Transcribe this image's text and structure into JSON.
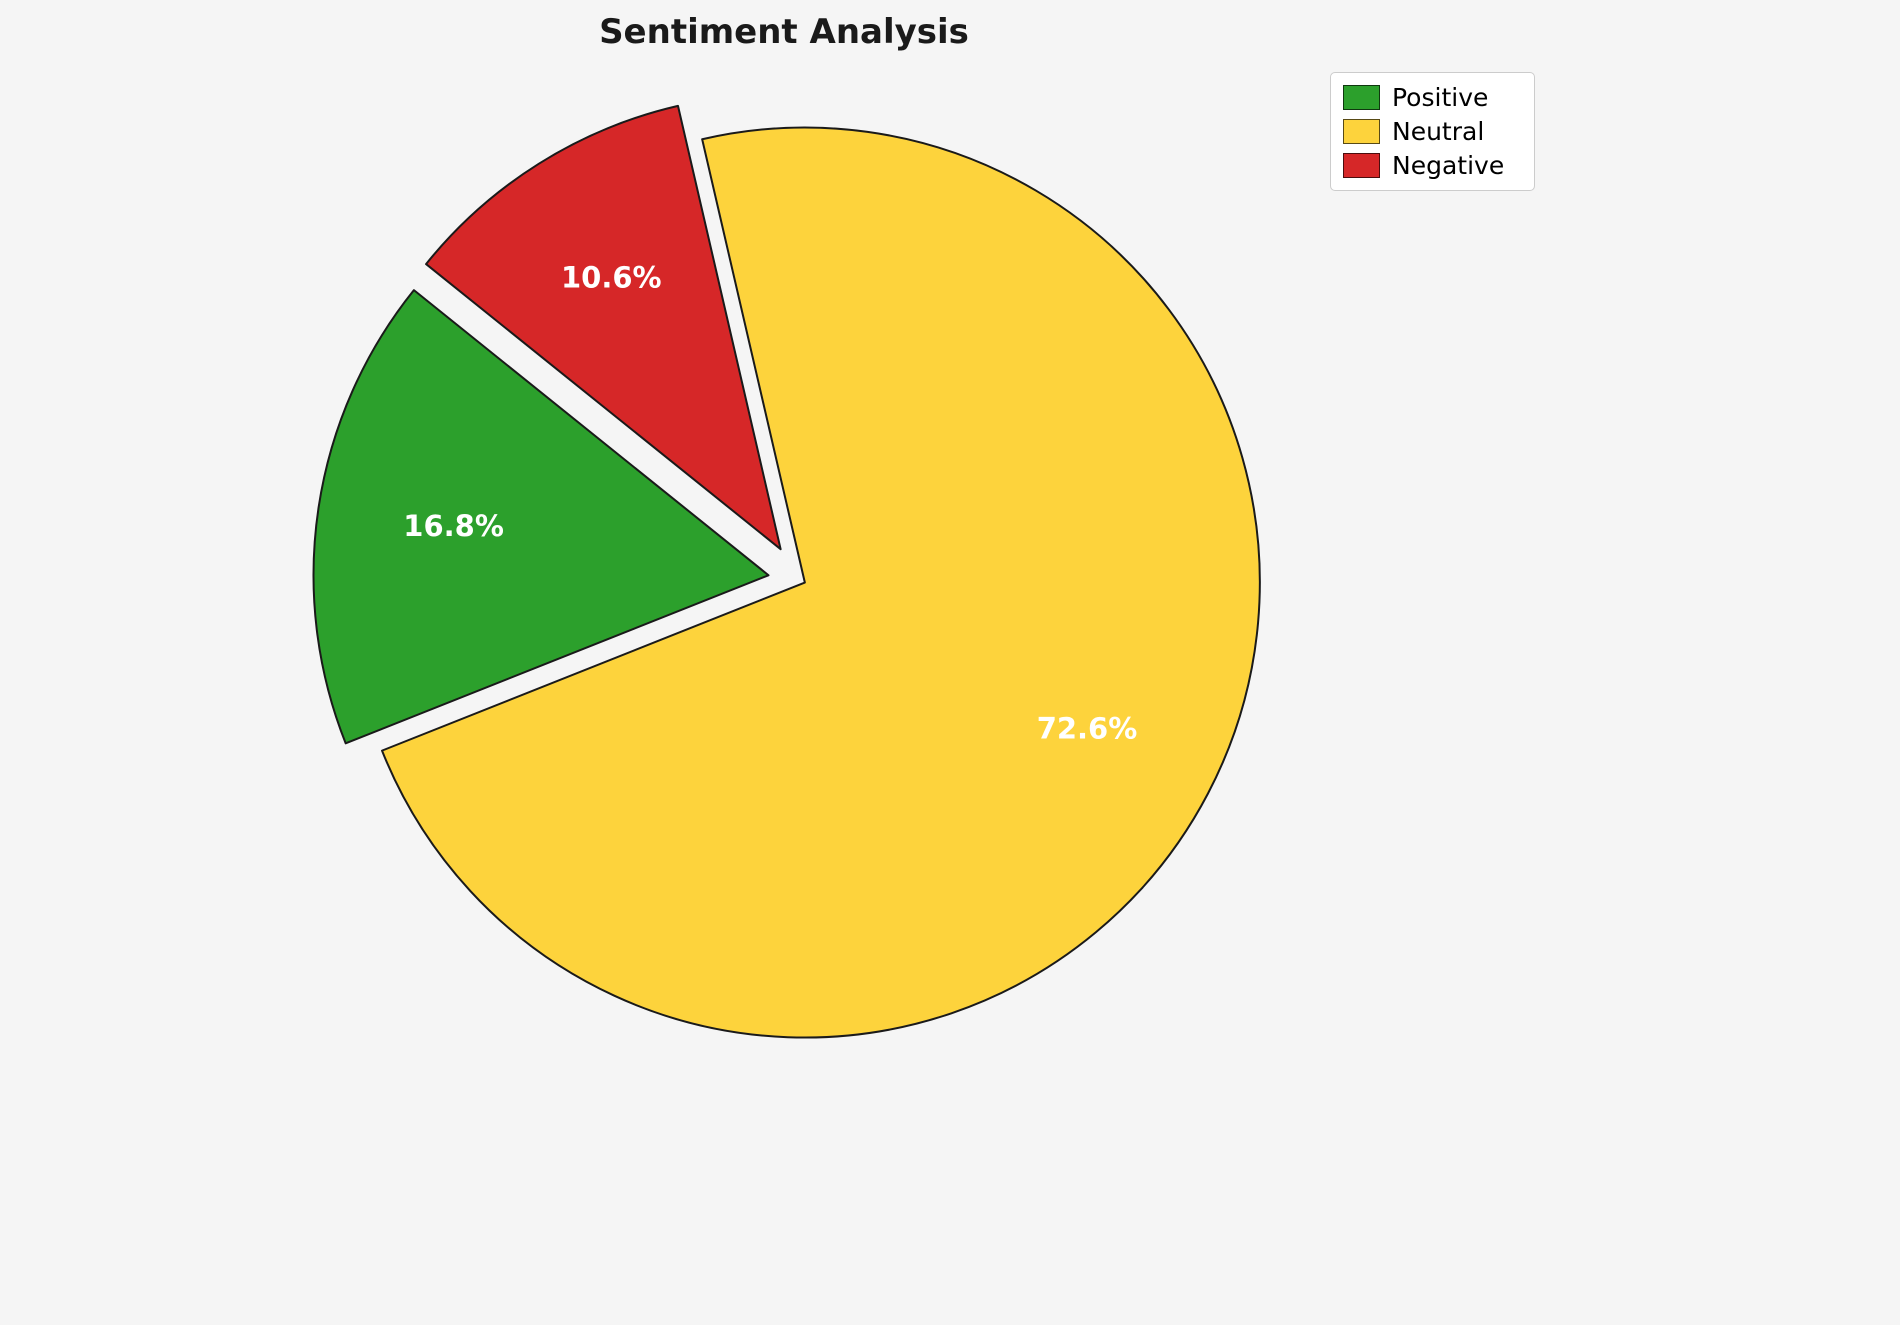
{
  "chart_data": {
    "type": "pie",
    "title": "Sentiment Analysis",
    "labels": [
      "Positive",
      "Neutral",
      "Negative"
    ],
    "values": [
      16.8,
      72.6,
      10.6
    ],
    "value_labels": [
      "16.8%",
      "72.6%",
      "10.6%"
    ],
    "colors": [
      "#2ca02c",
      "#fdd33c",
      "#d62728"
    ],
    "edge_color": "#1a1a1a",
    "pct_label_color": "#ffffff",
    "legend_position": "upper right",
    "start_angle": 141.2,
    "direction": "counterclockwise",
    "explode": [
      0.07,
      0.012,
      0.08
    ],
    "pct_distance": 0.7,
    "background_color": "#f5f5f5"
  }
}
